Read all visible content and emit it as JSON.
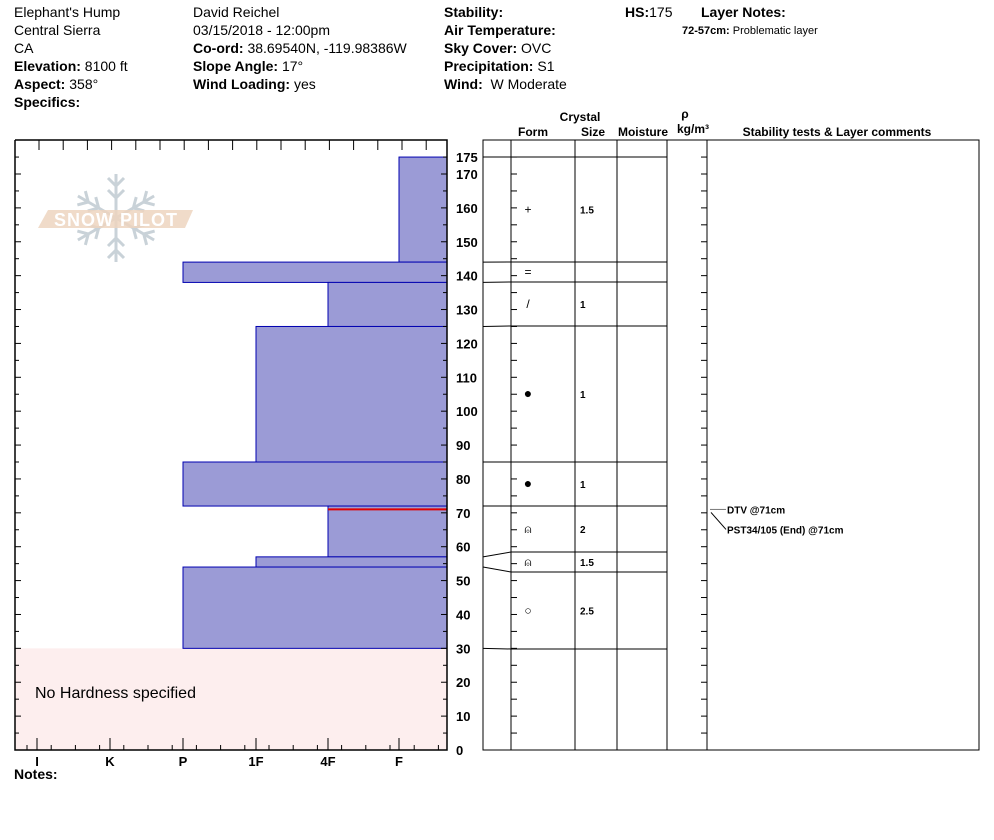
{
  "header": {
    "location": "Elephant's Hump",
    "range": "Central Sierra",
    "state": "CA",
    "elevation": {
      "label": "Elevation:",
      "value": "8100 ft"
    },
    "aspect": {
      "label": "Aspect:",
      "value": "358°"
    },
    "specifics": {
      "label": "Specifics:",
      "value": ""
    },
    "observer": "David Reichel",
    "datetime": "03/15/2018 - 12:00pm",
    "coord": {
      "label": "Co-ord:",
      "value": "38.69540N, -119.98386W"
    },
    "slope_angle": {
      "label": "Slope Angle:",
      "value": "17°"
    },
    "wind_loading": {
      "label": "Wind Loading:",
      "value": "yes"
    },
    "stability": {
      "label": "Stability:",
      "value": ""
    },
    "air_temperature": {
      "label": "Air Temperature:",
      "value": ""
    },
    "sky_cover": {
      "label": "Sky Cover:",
      "value": "OVC"
    },
    "precipitation": {
      "label": "Precipitation:",
      "value": "S1"
    },
    "wind": {
      "label": "Wind:",
      "value": "W Moderate"
    },
    "hs": {
      "label": "HS:",
      "value": "175"
    },
    "layer_notes": {
      "label": "Layer Notes:",
      "range": "72-57cm:",
      "text": "Problematic layer"
    }
  },
  "columns": {
    "crystal": "Crystal",
    "form": "Form",
    "size": "Size",
    "moisture": "Moisture",
    "rho": "ρ",
    "density_unit": "kg/m³",
    "comments": "Stability tests & Layer comments"
  },
  "logo": "SNOW PILOT",
  "no_hardness": "No Hardness specified",
  "notes": {
    "label": "Notes:",
    "value": ""
  },
  "colors": {
    "layer_fill": "#9b9bd6",
    "layer_stroke": "#0000b0",
    "weak_layer": "#e00000",
    "no_hardness_bg": "#fdeeee"
  },
  "chart_data": {
    "type": "bar",
    "orientation": "horizontal",
    "ylabel": "",
    "ylim": [
      0,
      175
    ],
    "y_ticks": [
      0,
      10,
      20,
      30,
      40,
      50,
      60,
      70,
      80,
      90,
      100,
      110,
      120,
      130,
      140,
      150,
      160,
      170,
      175
    ],
    "x_tick_labels": [
      "I",
      "K",
      "P",
      "1F",
      "4F",
      "F"
    ],
    "layers": [
      {
        "top": 175,
        "bottom": 144,
        "hardness": "F",
        "form": "+",
        "size": "1.5"
      },
      {
        "top": 144,
        "bottom": 138,
        "hardness": "P",
        "form": "=",
        "size": ""
      },
      {
        "top": 138,
        "bottom": 125,
        "hardness": "4F",
        "form": "/",
        "size": "1"
      },
      {
        "top": 125,
        "bottom": 85,
        "hardness": "1F",
        "form": "●",
        "size": "1"
      },
      {
        "top": 85,
        "bottom": 72,
        "hardness": "P",
        "form": "●",
        "size": "1"
      },
      {
        "top": 72,
        "bottom": 57,
        "hardness": "4F",
        "form": "⍝",
        "size": "2"
      },
      {
        "top": 57,
        "bottom": 54,
        "hardness": "1F",
        "form": "⍝",
        "size": "1.5"
      },
      {
        "top": 54,
        "bottom": 30,
        "hardness": "P",
        "form": "○",
        "size": "2.5"
      }
    ],
    "weak_layer_depth": 71,
    "no_hardness_range": [
      0,
      30
    ],
    "stability_tests": [
      "DTV @71cm",
      "PST34/105 (End) @71cm"
    ]
  }
}
